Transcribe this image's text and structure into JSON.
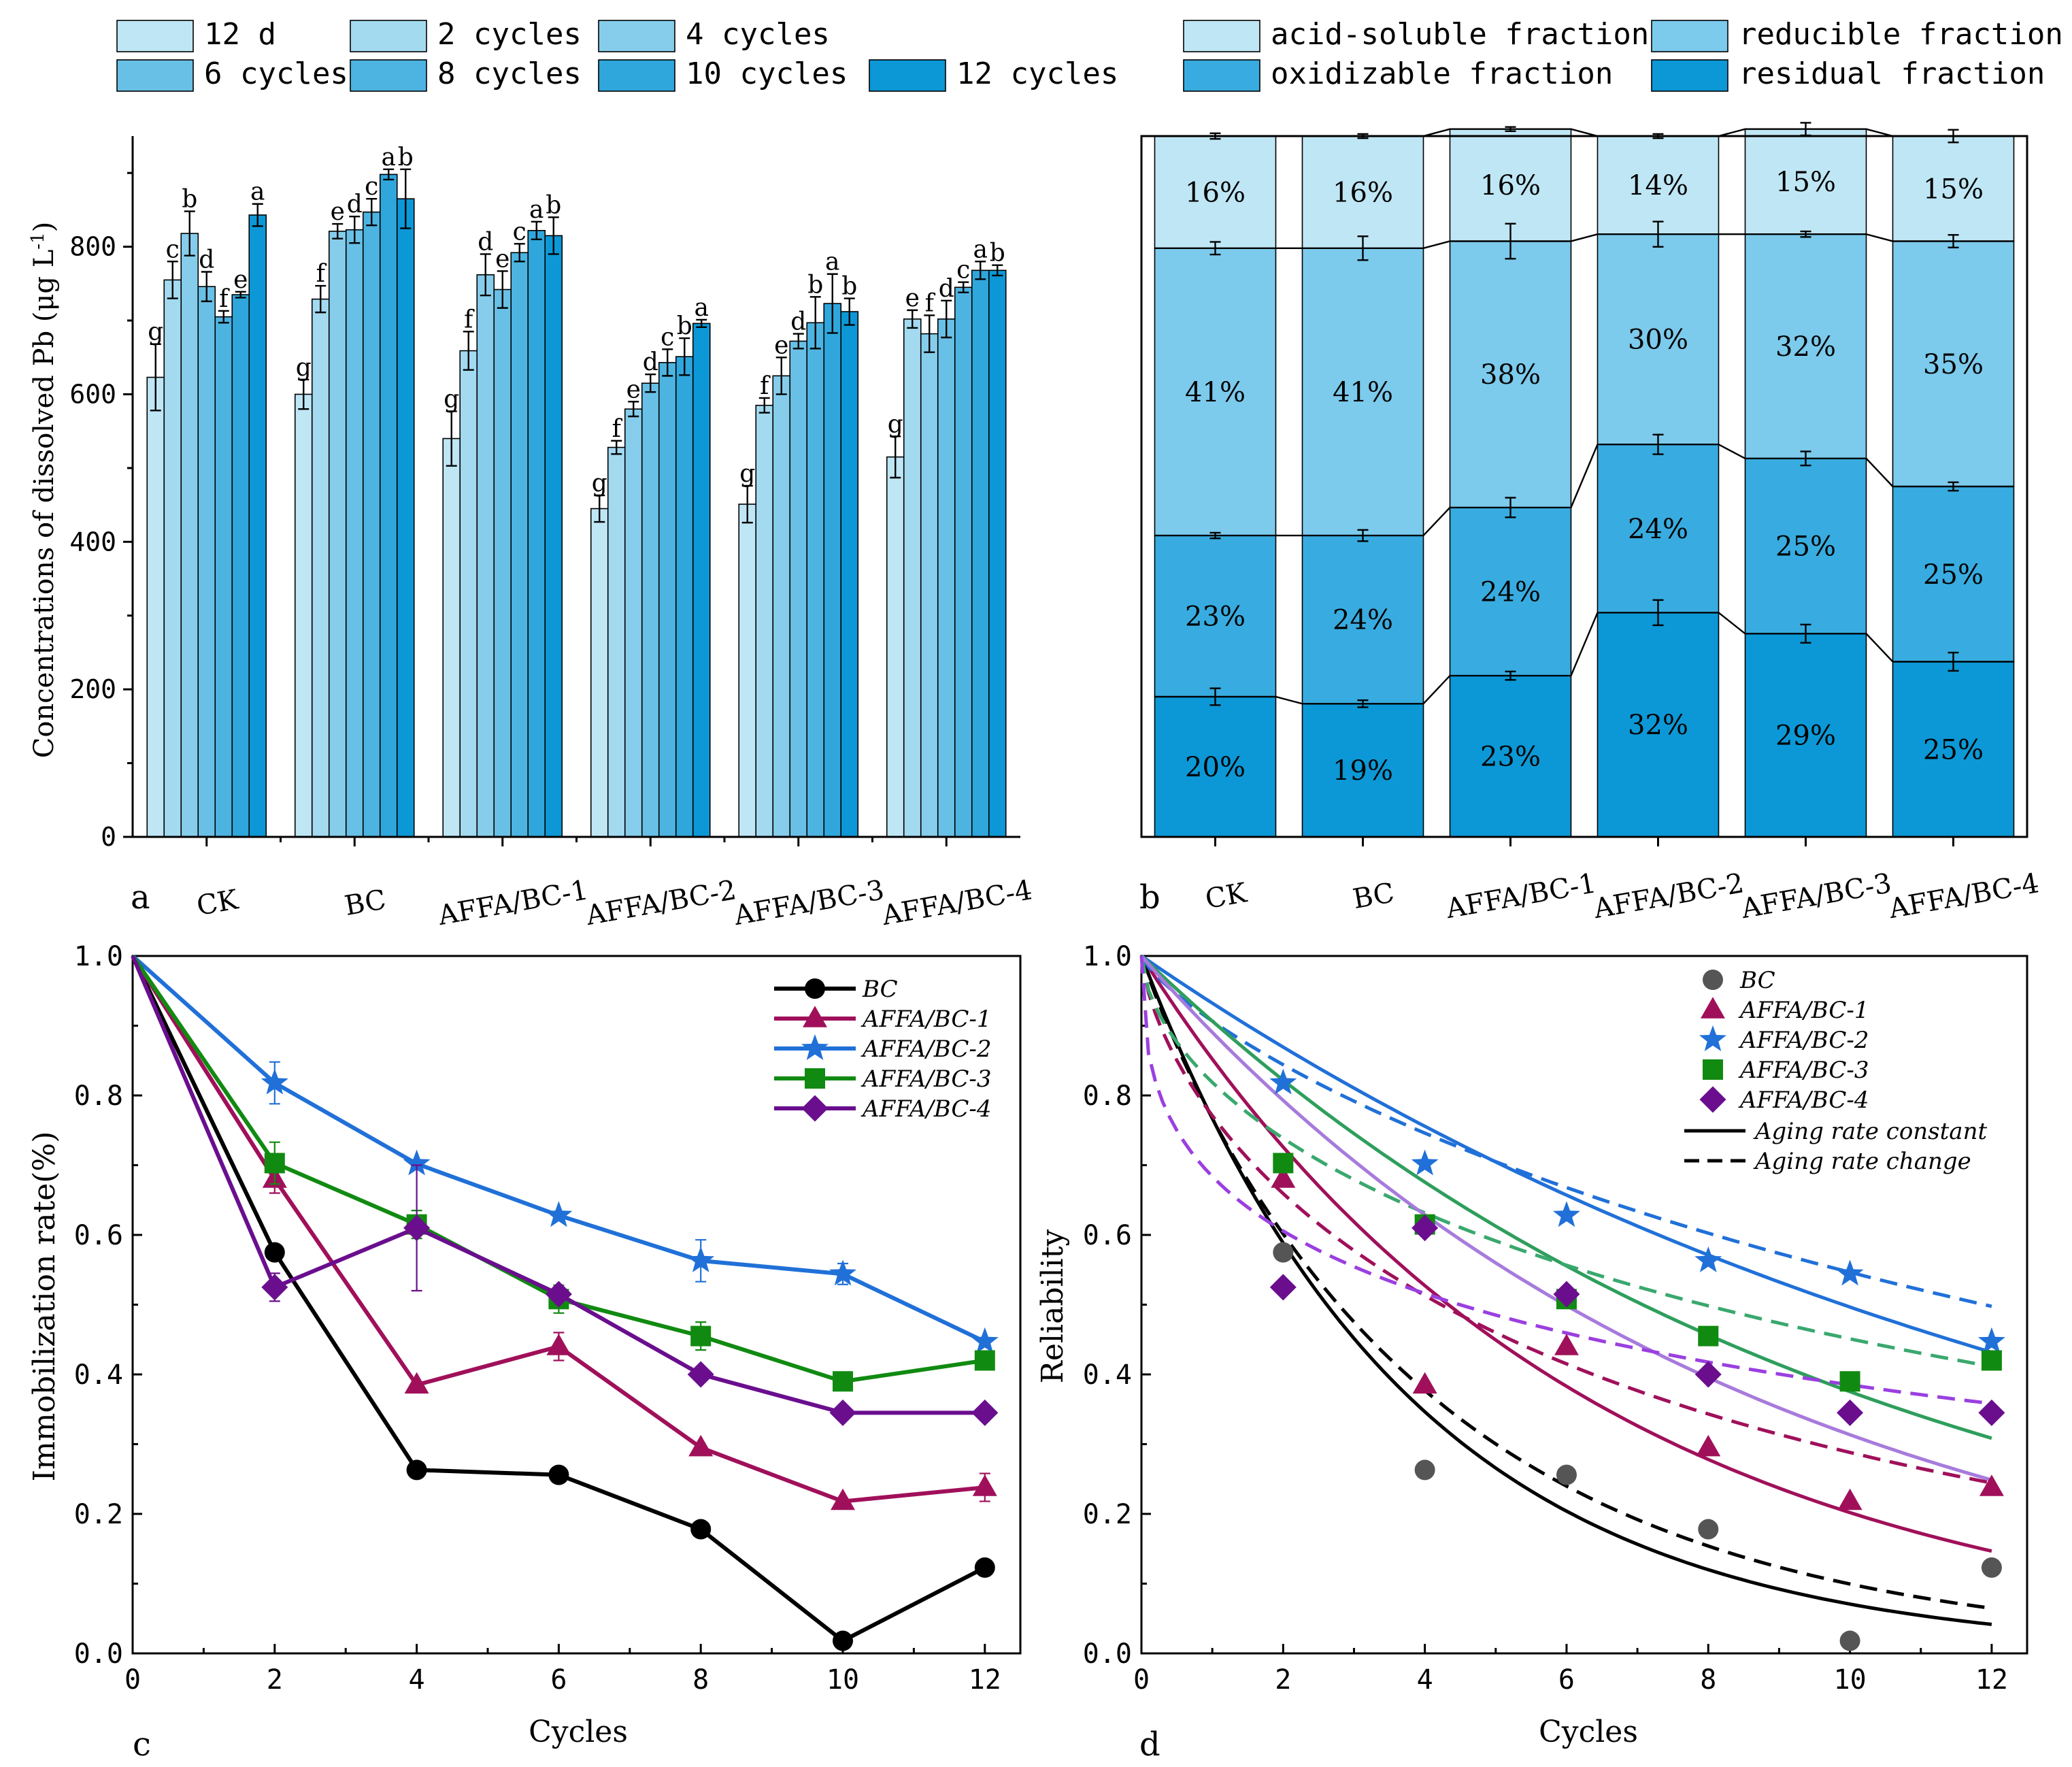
{
  "chart_data": [
    {
      "panel": "a",
      "type": "bar",
      "panel_label": "a",
      "ylabel": "Concentrations of dissolved Pb (μg L",
      "ylabel_sup": "-1",
      "ylabel_close": ")",
      "ylim": [
        0,
        950
      ],
      "yticks": [
        0,
        200,
        400,
        600,
        800
      ],
      "categories": [
        "CK",
        "BC",
        "AFFA/BC-1",
        "AFFA/BC-2",
        "AFFA/BC-3",
        "AFFA/BC-4"
      ],
      "series": [
        {
          "name": "12 d",
          "color": "#bfe6f4",
          "values": [
            623,
            600,
            540,
            445,
            451,
            515
          ],
          "errors": [
            45,
            20,
            37,
            18,
            25,
            28
          ],
          "letters": [
            "g",
            "g",
            "g",
            "g",
            "g",
            "g"
          ]
        },
        {
          "name": "2 cycles",
          "color": "#a3daf0",
          "values": [
            755,
            729,
            659,
            528,
            585,
            702
          ],
          "errors": [
            25,
            18,
            26,
            9,
            10,
            12
          ],
          "letters": [
            "c",
            "f",
            "f",
            "f",
            "f",
            "e"
          ]
        },
        {
          "name": "4 cycles",
          "color": "#86cdeb",
          "values": [
            818,
            821,
            762,
            580,
            625,
            682
          ],
          "errors": [
            30,
            10,
            28,
            10,
            25,
            25
          ],
          "letters": [
            "b",
            "e",
            "d",
            "e",
            "e",
            "f"
          ]
        },
        {
          "name": "6 cycles",
          "color": "#69c0e6",
          "values": [
            746,
            823,
            742,
            615,
            672,
            702
          ],
          "errors": [
            20,
            18,
            25,
            12,
            10,
            25
          ],
          "letters": [
            "d",
            "d",
            "e",
            "d",
            "d",
            "d"
          ]
        },
        {
          "name": "8 cycles",
          "color": "#4db4e1",
          "values": [
            705,
            847,
            792,
            643,
            697,
            745
          ],
          "errors": [
            8,
            18,
            12,
            18,
            35,
            7
          ],
          "letters": [
            "f",
            "c",
            "c",
            "c",
            "b",
            "c"
          ]
        },
        {
          "name": "10 cycles",
          "color": "#2fa7dc",
          "values": [
            735,
            898,
            822,
            651,
            723,
            768
          ],
          "errors": [
            4,
            7,
            12,
            25,
            40,
            12
          ],
          "letters": [
            "e",
            "a",
            "a",
            "b",
            "a",
            "a"
          ]
        },
        {
          "name": "12 cycles",
          "color": "#0c98d6",
          "values": [
            843,
            865,
            815,
            696,
            712,
            768
          ],
          "errors": [
            15,
            40,
            25,
            5,
            18,
            7
          ],
          "letters": [
            "a",
            "b",
            "b",
            "a",
            "b",
            "b"
          ]
        }
      ]
    },
    {
      "panel": "b",
      "type": "stacked_bar",
      "panel_label": "b",
      "categories": [
        "CK",
        "BC",
        "AFFA/BC-1",
        "AFFA/BC-2",
        "AFFA/BC-3",
        "AFFA/BC-4"
      ],
      "ylim": [
        0,
        100
      ],
      "series": [
        {
          "name": "residual fraction",
          "color": "#0c98d6",
          "values": [
            20,
            19,
            23,
            32,
            29,
            25
          ],
          "labels": [
            "20%",
            "19%",
            "23%",
            "32%",
            "29%",
            "25%"
          ],
          "errors": [
            1.2,
            0.5,
            0.6,
            1.8,
            1.3,
            1.3
          ]
        },
        {
          "name": "oxidizable fraction",
          "color": "#38ace0",
          "values": [
            23,
            24,
            24,
            24,
            25,
            25
          ],
          "labels": [
            "23%",
            "24%",
            "24%",
            "24%",
            "25%",
            "25%"
          ],
          "errors": [
            0.4,
            0.8,
            1.4,
            1.4,
            1.0,
            0.6
          ]
        },
        {
          "name": "reducible fraction",
          "color": "#7ccaec",
          "values": [
            41,
            41,
            38,
            30,
            32,
            35
          ],
          "labels": [
            "41%",
            "41%",
            "38%",
            "30%",
            "32%",
            "35%"
          ],
          "errors": [
            0.9,
            1.7,
            2.5,
            1.8,
            0.4,
            0.9
          ]
        },
        {
          "name": "acid-soluble fraction",
          "color": "#bfe6f4",
          "values": [
            16,
            16,
            16,
            14,
            15,
            15
          ],
          "labels": [
            "16%",
            "16%",
            "16%",
            "14%",
            "15%",
            "15%"
          ],
          "errors": [
            0.4,
            0.3,
            0.2,
            0.2,
            0.9,
            0.9
          ]
        }
      ],
      "legend_order": [
        "acid-soluble fraction",
        "reducible fraction",
        "oxidizable fraction",
        "residual fraction"
      ]
    },
    {
      "panel": "c",
      "type": "line",
      "panel_label": "c",
      "xlabel": "Cycles",
      "ylabel": "Immobilization rate(%)",
      "xlim": [
        0,
        12.5
      ],
      "ylim": [
        0,
        1.0
      ],
      "xticks": [
        0,
        2,
        4,
        6,
        8,
        10,
        12
      ],
      "yticks": [
        "0.0",
        "0.2",
        "0.4",
        "0.6",
        "0.8",
        "1.0"
      ],
      "x": [
        0,
        2,
        4,
        6,
        8,
        10,
        12
      ],
      "series": [
        {
          "name": "BC",
          "color": "#000000",
          "marker": "circle",
          "values": [
            1.0,
            0.575,
            0.263,
            0.256,
            0.178,
            0.018,
            0.123
          ],
          "errors": [
            0,
            0,
            0,
            0,
            0,
            0,
            0
          ]
        },
        {
          "name": "AFFA/BC-1",
          "color": "#a0105a",
          "marker": "triangle",
          "values": [
            1.0,
            0.68,
            0.385,
            0.44,
            0.295,
            0.218,
            0.238
          ],
          "errors": [
            0,
            0.02,
            0,
            0.02,
            0,
            0,
            0.02
          ]
        },
        {
          "name": "AFFA/BC-2",
          "color": "#2070d8",
          "marker": "star",
          "values": [
            1.0,
            0.818,
            0.702,
            0.628,
            0.563,
            0.544,
            0.447
          ],
          "errors": [
            0,
            0.03,
            0,
            0,
            0.03,
            0.015,
            0
          ]
        },
        {
          "name": "AFFA/BC-3",
          "color": "#118a11",
          "marker": "square",
          "values": [
            1.0,
            0.703,
            0.615,
            0.508,
            0.455,
            0.39,
            0.42
          ],
          "errors": [
            0,
            0.03,
            0.02,
            0.02,
            0.02,
            0,
            0
          ]
        },
        {
          "name": "AFFA/BC-4",
          "color": "#6a0e8e",
          "marker": "diamond",
          "values": [
            1.0,
            0.525,
            0.61,
            0.515,
            0.4,
            0.345,
            0.345
          ],
          "errors": [
            0,
            0.02,
            0.09,
            0,
            0,
            0,
            0
          ]
        }
      ]
    },
    {
      "panel": "d",
      "type": "scatter",
      "panel_label": "d",
      "xlabel": "Cycles",
      "ylabel": "Reliability",
      "xlim": [
        0,
        12.5
      ],
      "ylim": [
        0,
        1.0
      ],
      "xticks": [
        0,
        2,
        4,
        6,
        8,
        10,
        12
      ],
      "yticks": [
        "0.0",
        "0.2",
        "0.4",
        "0.6",
        "0.8",
        "1.0"
      ],
      "x": [
        0,
        2,
        4,
        6,
        8,
        10,
        12
      ],
      "series": [
        {
          "name": "BC",
          "color": "#555555",
          "marker": "circle",
          "values": [
            1.0,
            0.575,
            0.263,
            0.256,
            0.178,
            0.018,
            0.123
          ],
          "fit_constant": {
            "rate": 0.265,
            "color": "#000000"
          },
          "fit_change": {
            "k": 0.265,
            "m": 0.94,
            "color": "#000000"
          }
        },
        {
          "name": "AFFA/BC-1",
          "color": "#a0105a",
          "marker": "triangle",
          "values": [
            1.0,
            0.68,
            0.385,
            0.44,
            0.295,
            0.218,
            0.238
          ],
          "fit_constant": {
            "rate": 0.16,
            "color": "#a0105a"
          },
          "fit_change": {
            "k": 0.26,
            "m": 0.68,
            "color": "#a0105a"
          }
        },
        {
          "name": "AFFA/BC-2",
          "color": "#2070d8",
          "marker": "star",
          "values": [
            1.0,
            0.818,
            0.702,
            0.628,
            0.563,
            0.544,
            0.447
          ],
          "fit_constant": {
            "rate": 0.07,
            "color": "#2070d8"
          },
          "fit_change": {
            "k": 0.098,
            "m": 0.79,
            "color": "#2070d8"
          }
        },
        {
          "name": "AFFA/BC-3",
          "color": "#118a11",
          "marker": "square",
          "values": [
            1.0,
            0.703,
            0.615,
            0.508,
            0.455,
            0.39,
            0.42
          ],
          "fit_constant": {
            "rate": 0.098,
            "color": "#2e9e5c"
          },
          "fit_change": {
            "k": 0.2,
            "m": 0.6,
            "color": "#3aa86e"
          }
        },
        {
          "name": "AFFA/BC-4",
          "color": "#6a0e8e",
          "marker": "diamond",
          "values": [
            1.0,
            0.525,
            0.61,
            0.515,
            0.4,
            0.345,
            0.345
          ],
          "fit_constant": {
            "rate": 0.116,
            "color": "#a77bdc"
          },
          "fit_change": {
            "k": 0.38,
            "m": 0.4,
            "color": "#9a3fe0"
          }
        }
      ],
      "legend_lines": [
        {
          "name": "Aging rate constant",
          "style": "solid"
        },
        {
          "name": "Aging rate change",
          "style": "dashed"
        }
      ]
    }
  ]
}
